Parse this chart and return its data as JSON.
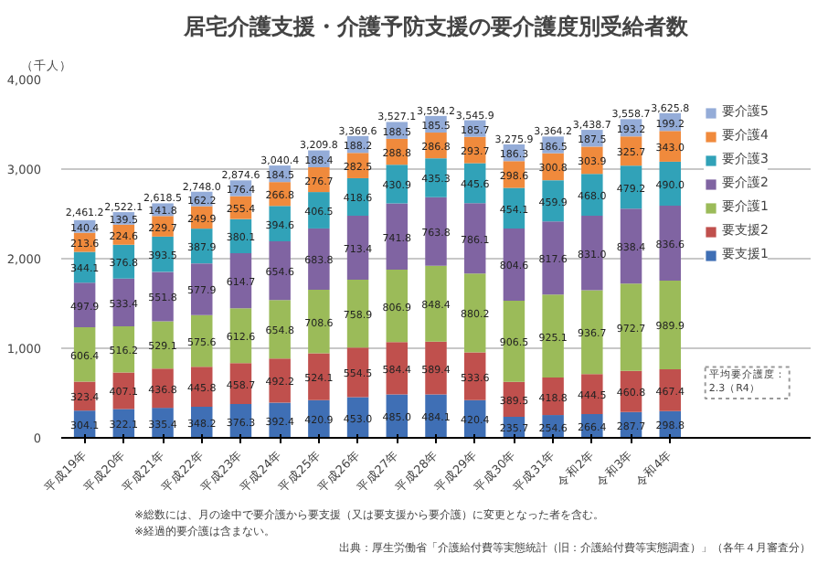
{
  "chart_data": {
    "type": "bar",
    "stacked": true,
    "title": "居宅介護支援・介護予防支援の要介護度別受給者数",
    "ylabel": "（千人）",
    "categories": [
      "平成19年",
      "平成20年",
      "平成21年",
      "平成22年",
      "平成23年",
      "平成24年",
      "平成25年",
      "平成26年",
      "平成27年",
      "平成28年",
      "平成29年",
      "平成30年",
      "平成31年",
      "令和2年",
      "令和3年",
      "令和4年"
    ],
    "series": [
      {
        "name": "要支援1",
        "color": "#3f6fb5",
        "values": [
          304.1,
          322.1,
          335.4,
          348.2,
          376.3,
          392.4,
          420.9,
          453,
          485,
          484.1,
          420.4,
          235.7,
          254.6,
          266.4,
          287.7,
          298.8
        ],
        "value_labels": [
          "304.1",
          "322.1",
          "335.4",
          "348.2",
          "376.3",
          "392.4",
          "420.9",
          "453.0",
          "485.0",
          "484.1",
          "420.4",
          "235.7",
          "254.6",
          "266.4",
          "287.7",
          "298.8"
        ]
      },
      {
        "name": "要支援2",
        "color": "#c0504d",
        "values": [
          323.4,
          407.1,
          436.8,
          445.8,
          458.7,
          492.2,
          524.1,
          554.5,
          584.4,
          589.4,
          533.6,
          389.5,
          418.8,
          444.5,
          460.8,
          467.4
        ],
        "value_labels": [
          "323.4",
          "407.1",
          "436.8",
          "445.8",
          "458.7",
          "492.2",
          "524.1",
          "554.5",
          "584.4",
          "589.4",
          "533.6",
          "389.5",
          "418.8",
          "444.5",
          "460.8",
          "467.4"
        ]
      },
      {
        "name": "要介護1",
        "color": "#9bbb59",
        "values": [
          606.4,
          516.2,
          529.1,
          575.6,
          612.6,
          654.8,
          708.6,
          758.9,
          806.9,
          848.4,
          880.2,
          906.5,
          925.1,
          936.7,
          972.7,
          989.9
        ],
        "value_labels": [
          "606.4",
          "516.2",
          "529.1",
          "575.6",
          "612.6",
          "654.8",
          "708.6",
          "758.9",
          "806.9",
          "848.4",
          "880.2",
          "906.5",
          "925.1",
          "936.7",
          "972.7",
          "989.9"
        ]
      },
      {
        "name": "要介護2",
        "color": "#8064a2",
        "values": [
          497.9,
          533.4,
          551.8,
          577.9,
          614.7,
          654.6,
          683.8,
          713.4,
          741.8,
          763.8,
          786.1,
          804.6,
          817.6,
          831,
          838.4,
          836.6
        ],
        "value_labels": [
          "497.9",
          "533.4",
          "551.8",
          "577.9",
          "614.7",
          "654.6",
          "683.8",
          "713.4",
          "741.8",
          "763.8",
          "786.1",
          "804.6",
          "817.6",
          "831.0",
          "838.4",
          "836.6"
        ]
      },
      {
        "name": "要介護3",
        "color": "#31a2b8",
        "values": [
          344.1,
          376.8,
          393.5,
          387.9,
          380.1,
          394.6,
          406.5,
          418.6,
          430.9,
          435.3,
          445.6,
          454.1,
          459.9,
          468,
          479.2,
          490
        ],
        "value_labels": [
          "344.1",
          "376.8",
          "393.5",
          "387.9",
          "380.1",
          "394.6",
          "406.5",
          "418.6",
          "430.9",
          "435.3",
          "445.6",
          "454.1",
          "459.9",
          "468.0",
          "479.2",
          "490.0"
        ]
      },
      {
        "name": "要介護4",
        "color": "#f08a3c",
        "values": [
          213.6,
          224.6,
          229.7,
          249.9,
          255.4,
          266.8,
          276.7,
          282.5,
          288.8,
          286.8,
          293.7,
          298.6,
          300.8,
          303.9,
          325.7,
          343
        ],
        "value_labels": [
          "213.6",
          "224.6",
          "229.7",
          "249.9",
          "255.4",
          "266.8",
          "276.7",
          "282.5",
          "288.8",
          "286.8",
          "293.7",
          "298.6",
          "300.8",
          "303.9",
          "325.7",
          "343.0"
        ]
      },
      {
        "name": "要介護5",
        "color": "#94acd8",
        "values": [
          140.4,
          139.5,
          141.8,
          162.2,
          176.4,
          184.5,
          188.4,
          188.2,
          188.5,
          185.5,
          185.7,
          186.3,
          186.5,
          187.5,
          193.2,
          199.2
        ],
        "value_labels": [
          "140.4",
          "139.5",
          "141.8",
          "162.2",
          "176.4",
          "184.5",
          "188.4",
          "188.2",
          "188.5",
          "185.5",
          "185.7",
          "186.3",
          "186.5",
          "187.5",
          "193.2",
          "199.2"
        ]
      }
    ],
    "ylim": [
      0,
      4000
    ],
    "yticks": [
      0,
      {
        "value": 1000,
        "label": "1,000"
      },
      {
        "value": 2000,
        "label": "2,000"
      },
      {
        "value": 3000,
        "label": "3,000"
      },
      {
        "value": 4000,
        "label": "4,000"
      }
    ],
    "grid": "y",
    "legend": "right",
    "annotations": [
      {
        "text": "2,461.2",
        "x": "平成19年",
        "y": 2461.2
      },
      {
        "text": "2,522.1",
        "x": "平成20年",
        "y": 2522.1
      },
      {
        "text": "2,618.5",
        "x": "平成21年",
        "y": 2618.5
      },
      {
        "text": "2,748.0",
        "x": "平成22年",
        "y": 2748.0
      },
      {
        "text": "2,874.6",
        "x": "平成23年",
        "y": 2874.6
      },
      {
        "text": "3,040.4",
        "x": "平成24年",
        "y": 3040.4
      },
      {
        "text": "3,209.8",
        "x": "平成25年",
        "y": 3209.8
      },
      {
        "text": "3,369.6",
        "x": "平成26年",
        "y": 3369.6
      },
      {
        "text": "3,527.1",
        "x": "平成27年",
        "y": 3527.1
      },
      {
        "text": "3,594.2",
        "x": "平成28年",
        "y": 3594.2
      },
      {
        "text": "3,545.9",
        "x": "平成29年",
        "y": 3545.9
      },
      {
        "text": "3,275.9",
        "x": "平成30年",
        "y": 3275.9
      },
      {
        "text": "3,364.2",
        "x": "平成31年",
        "y": 3364.2
      },
      {
        "text": "3,438.7",
        "x": "令和2年",
        "y": 3438.7
      },
      {
        "text": "3,558.7",
        "x": "令和3年",
        "y": 3558.7
      },
      {
        "text": "3,625.8",
        "x": "令和4年",
        "y": 3625.8
      },
      "平均要介護度：\n2.3（R4）",
      "※総数には、月の途中で要介護から要支援（又は要支援から要介護）に変更となった者を含む。",
      "※経過的要介護は含まない。",
      "出典：厚生労働省「介護給付費等実態統計（旧：介護給付費等実態調査）」（各年４月審査分）"
    ]
  }
}
